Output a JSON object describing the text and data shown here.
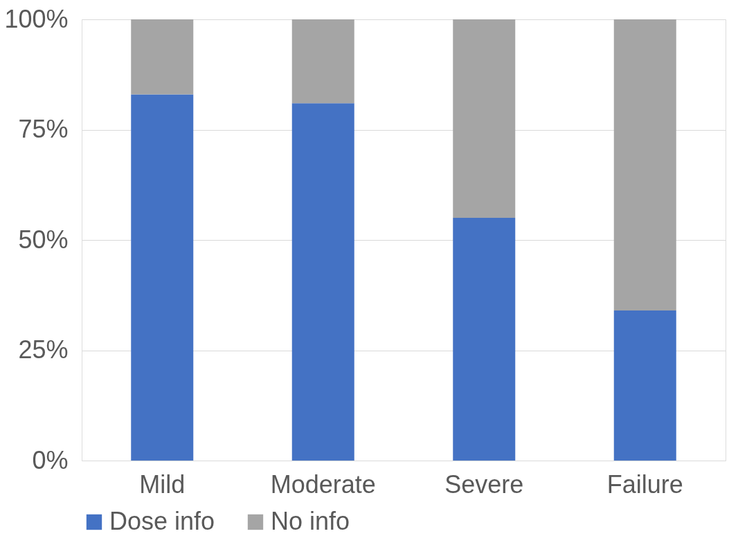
{
  "chart_data": {
    "type": "bar",
    "stacked": true,
    "categories": [
      "Mild",
      "Moderate",
      "Severe",
      "Failure"
    ],
    "series": [
      {
        "name": "Dose info",
        "color": "#4472c4",
        "values": [
          83,
          81,
          55,
          34
        ]
      },
      {
        "name": "No info",
        "color": "#a5a5a5",
        "values": [
          17,
          19,
          45,
          66
        ]
      }
    ],
    "ylim": [
      0,
      100
    ],
    "yticks": [
      {
        "value": 0,
        "label": "0%"
      },
      {
        "value": 25,
        "label": "25%"
      },
      {
        "value": 50,
        "label": "50%"
      },
      {
        "value": 75,
        "label": "75%"
      },
      {
        "value": 100,
        "label": "100%"
      }
    ],
    "grid": "y",
    "legend": "bottom"
  }
}
